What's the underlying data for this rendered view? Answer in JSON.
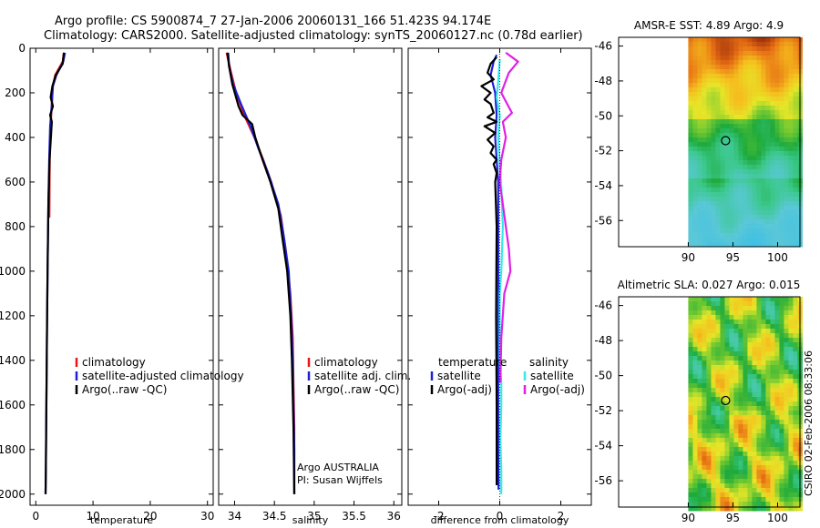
{
  "title_line1": "Argo profile: CS 5900874_7 27-Jan-2006 20060131_166 51.423S 94.174E",
  "title_line2": "Climatology: CARS2000. Satellite-adjusted climatology: synTS_20060127.nc (0.78d earlier)",
  "side_label": "CSIRO 02-Feb-2006 08:33:06",
  "colors": {
    "red": "#e8141c",
    "blue": "#1c20d8",
    "black": "#000000",
    "cyan": "#38e8e8",
    "magenta": "#e020e8"
  },
  "chart_data": [
    {
      "id": "temperature",
      "type": "line",
      "xlabel": "temperature",
      "xlim": [
        -1,
        31
      ],
      "ylim": [
        0,
        2050
      ],
      "yreverse": true,
      "xticks": [
        0,
        10,
        20,
        30
      ],
      "yticks": [
        0,
        200,
        400,
        600,
        800,
        1000,
        1200,
        1400,
        1600,
        1800,
        2000
      ],
      "legend": [
        "climatology",
        "satellite-adjusted climatology",
        "Argo(..raw -QC)"
      ],
      "series": [
        {
          "name": "climatology",
          "color": "red",
          "x": [
            4.9,
            4.7,
            3.4,
            2.9,
            2.8,
            2.6,
            2.45,
            2.4,
            2.38
          ],
          "y": [
            20,
            60,
            120,
            180,
            250,
            350,
            450,
            600,
            760
          ]
        },
        {
          "name": "satellite-adjusted climatology",
          "color": "blue",
          "x": [
            5.1,
            4.8,
            3.6,
            3.0,
            2.8,
            2.5,
            2.35,
            2.2,
            2.05,
            1.95,
            1.85,
            1.75,
            1.7
          ],
          "y": [
            20,
            60,
            120,
            170,
            250,
            350,
            500,
            700,
            1000,
            1300,
            1600,
            1900,
            2000
          ]
        },
        {
          "name": "Argo(..raw -QC)",
          "color": "black",
          "x": [
            4.9,
            4.7,
            3.5,
            2.9,
            2.6,
            3.0,
            2.5,
            2.8,
            2.4,
            2.2,
            2.05,
            1.95,
            1.85,
            1.75,
            1.7
          ],
          "y": [
            20,
            70,
            120,
            170,
            220,
            260,
            300,
            330,
            500,
            700,
            1000,
            1300,
            1600,
            1900,
            2000
          ]
        }
      ]
    },
    {
      "id": "salinity",
      "type": "line",
      "xlabel": "salinity",
      "xlim": [
        33.8,
        36.1
      ],
      "ylim": [
        0,
        2050
      ],
      "yreverse": true,
      "xticks": [
        34,
        34.5,
        35,
        35.5,
        36
      ],
      "xticklabels": [
        "34",
        "34.5",
        "35",
        "35.5",
        "36"
      ],
      "legend": [
        "climatology",
        "satellite adj. clim.",
        "Argo(..raw -QC)"
      ],
      "annotation": [
        "Argo AUSTRALIA",
        "PI: Susan Wijffels"
      ],
      "series": [
        {
          "name": "climatology",
          "color": "red",
          "x": [
            33.9,
            33.95,
            34.02,
            34.12,
            34.25,
            34.36,
            34.46,
            34.58,
            34.64,
            34.7,
            34.73,
            34.74,
            34.75,
            34.75
          ],
          "y": [
            20,
            100,
            200,
            300,
            400,
            500,
            600,
            750,
            900,
            1100,
            1300,
            1500,
            1700,
            2000
          ]
        },
        {
          "name": "satellite adj. clim.",
          "color": "blue",
          "x": [
            33.92,
            33.93,
            33.98,
            34.08,
            34.2,
            34.3,
            34.42,
            34.55,
            34.62,
            34.68,
            34.71,
            34.73,
            34.74,
            34.75,
            34.75
          ],
          "y": [
            20,
            80,
            160,
            250,
            350,
            450,
            560,
            700,
            850,
            1000,
            1200,
            1400,
            1600,
            1800,
            2000
          ]
        },
        {
          "name": "Argo(..raw -QC)",
          "color": "black",
          "x": [
            33.91,
            33.93,
            33.97,
            34.05,
            34.1,
            34.22,
            34.26,
            34.35,
            34.45,
            34.55,
            34.6,
            34.66,
            34.7,
            34.72,
            34.74,
            34.75
          ],
          "y": [
            20,
            80,
            160,
            260,
            300,
            340,
            400,
            500,
            600,
            720,
            850,
            1000,
            1200,
            1400,
            1700,
            2000
          ]
        }
      ]
    },
    {
      "id": "difference",
      "type": "line",
      "xlabel": "difference from climatology",
      "xlim": [
        -3,
        3
      ],
      "ylim": [
        0,
        2050
      ],
      "yreverse": true,
      "xticks": [
        -2,
        0,
        2
      ],
      "legend_temperature": {
        "heading": "temperature",
        "items": [
          "satellite",
          "Argo(-adj)"
        ]
      },
      "legend_salinity": {
        "heading": "salinity",
        "items": [
          "satellite",
          "Argo(-adj)"
        ]
      },
      "series": [
        {
          "name": "temperature satellite",
          "color": "blue",
          "x": [
            -0.1,
            -0.2,
            -0.3,
            -0.15,
            -0.1,
            -0.15,
            -0.1,
            -0.05,
            -0.05,
            -0.05,
            -0.05,
            -0.05,
            -0.05,
            -0.05,
            -0.04
          ],
          "y": [
            30,
            60,
            120,
            200,
            300,
            400,
            500,
            600,
            800,
            1000,
            1200,
            1400,
            1600,
            1800,
            1980
          ]
        },
        {
          "name": "temperature Argo(-adj)",
          "color": "black",
          "x": [
            -0.1,
            -0.3,
            -0.4,
            -0.2,
            -0.6,
            -0.3,
            -0.5,
            -0.3,
            -0.2,
            -0.4,
            -0.1,
            -0.5,
            -0.15,
            -0.4,
            -0.2,
            -0.3,
            -0.1,
            -0.2,
            -0.1,
            -0.15,
            -0.1,
            -0.12,
            -0.1,
            -0.1
          ],
          "y": [
            40,
            70,
            110,
            140,
            170,
            200,
            230,
            250,
            290,
            310,
            330,
            350,
            380,
            410,
            440,
            470,
            500,
            520,
            560,
            600,
            800,
            1200,
            1600,
            1960
          ]
        },
        {
          "name": "salinity satellite",
          "color": "cyan",
          "x": [
            0.0,
            -0.05,
            -0.1,
            0.0,
            -0.05,
            0.0,
            0.05,
            0.1,
            0.05,
            0.0,
            0.0,
            0.0,
            0.05,
            0.05,
            0.02,
            0.05,
            0.05
          ],
          "y": [
            50,
            150,
            220,
            300,
            400,
            520,
            620,
            800,
            1000,
            1100,
            1200,
            1400,
            1500,
            1600,
            1750,
            1900,
            2000
          ]
        },
        {
          "name": "salinity Argo(-adj)",
          "color": "magenta",
          "x": [
            0.2,
            0.6,
            0.3,
            0.05,
            0.4,
            0.1,
            0.2,
            0.05,
            0.0,
            0.1,
            0.2,
            0.3,
            0.35,
            0.15,
            0.05,
            0.02
          ],
          "y": [
            20,
            60,
            110,
            200,
            290,
            330,
            400,
            500,
            600,
            700,
            800,
            900,
            1000,
            1100,
            1300,
            1500
          ]
        }
      ]
    },
    {
      "id": "sst_map",
      "type": "heatmap",
      "title": "AMSR-E SST: 4.89 Argo: 4.9",
      "xlim": [
        87,
        102.5
      ],
      "ylim": [
        -57.5,
        -45.5
      ],
      "xticks": [
        90,
        95,
        100
      ],
      "yticks": [
        -46,
        -48,
        -50,
        -52,
        -54,
        -56
      ],
      "data_x_start": 90,
      "marker": {
        "lon": 94.174,
        "lat": -51.423
      },
      "palette": "sst"
    },
    {
      "id": "sla_map",
      "type": "heatmap",
      "title": "Altimetric SLA: 0.027 Argo: 0.015",
      "xlim": [
        87,
        102.5
      ],
      "ylim": [
        -57.5,
        -45.5
      ],
      "xticks": [
        90,
        95,
        100
      ],
      "yticks": [
        -46,
        -48,
        -50,
        -52,
        -54,
        -56
      ],
      "data_x_start": 90,
      "marker": {
        "lon": 94.174,
        "lat": -51.423
      },
      "palette": "sla"
    }
  ]
}
